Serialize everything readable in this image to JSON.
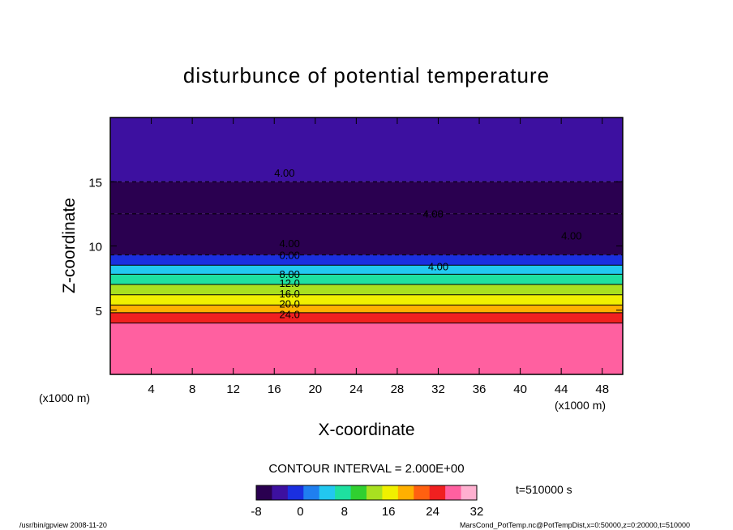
{
  "chart_data": {
    "type": "heatmap",
    "title": "disturbunce of potential temperature",
    "xlabel": "X-coordinate",
    "ylabel": "Z-coordinate",
    "x_unit": "(x1000 m)",
    "z_unit": "(x1000 m)",
    "xlim": [
      0,
      50
    ],
    "ylim": [
      0,
      20
    ],
    "x_ticks": [
      4,
      8,
      12,
      16,
      20,
      24,
      28,
      32,
      36,
      40,
      44,
      48
    ],
    "y_ticks": [
      5,
      10,
      15
    ],
    "contour_interval_label": "CONTOUR INTERVAL = 2.000E+00",
    "contour_labels": [
      {
        "text": "4.00",
        "x": 17,
        "z": 15.4
      },
      {
        "text": "4.00",
        "x": 31.5,
        "z": 12.2
      },
      {
        "text": "4.00",
        "x": 45,
        "z": 10.5
      },
      {
        "text": "4.00",
        "x": 17.5,
        "z": 9.9
      },
      {
        "text": "0.00",
        "x": 17.5,
        "z": 9.0
      },
      {
        "text": "4.00",
        "x": 32,
        "z": 8.1
      },
      {
        "text": "8.00",
        "x": 17.5,
        "z": 7.5
      },
      {
        "text": "12.0",
        "x": 17.5,
        "z": 6.8
      },
      {
        "text": "16.0",
        "x": 17.5,
        "z": 6.0
      },
      {
        "text": "20.0",
        "x": 17.5,
        "z": 5.2
      },
      {
        "text": "24.0",
        "x": 17.5,
        "z": 4.4
      }
    ],
    "field_layers": [
      {
        "z_from": 0,
        "z_to": 4,
        "value": 28
      },
      {
        "z_from": 4,
        "z_to": 4.8,
        "value": 24
      },
      {
        "z_from": 4.8,
        "z_to": 5.4,
        "value": 20
      },
      {
        "z_from": 5.4,
        "z_to": 6.2,
        "value": 16
      },
      {
        "z_from": 6.2,
        "z_to": 7.0,
        "value": 12
      },
      {
        "z_from": 7.0,
        "z_to": 7.8,
        "value": 8
      },
      {
        "z_from": 7.8,
        "z_to": 8.5,
        "value": 4
      },
      {
        "z_from": 8.5,
        "z_to": 9.3,
        "value": 0
      },
      {
        "z_from": 9.3,
        "z_to": 12.5,
        "value": -6
      },
      {
        "z_from": 12.5,
        "z_to": 15.0,
        "value": -7
      },
      {
        "z_from": 15.0,
        "z_to": 20,
        "value": -4
      }
    ],
    "colorbar": {
      "ticks": [
        "-8",
        "0",
        "8",
        "16",
        "24",
        "32"
      ],
      "min": -8,
      "max": 32,
      "colors": [
        "#2a0050",
        "#3d10a0",
        "#1a2fe0",
        "#1f7ff0",
        "#22c8f0",
        "#1ee0a0",
        "#30d030",
        "#a8e020",
        "#f0f000",
        "#ffb000",
        "#ff6010",
        "#f02020",
        "#ff60a0",
        "#ffb0d0"
      ]
    },
    "time_label": "t=510000 s",
    "footer_left": "/usr/bin/gpview  2008-11-20",
    "footer_right": "MarsCond_PotTemp.nc@PotTempDist,x=0:50000,z=0:20000,t=510000"
  }
}
